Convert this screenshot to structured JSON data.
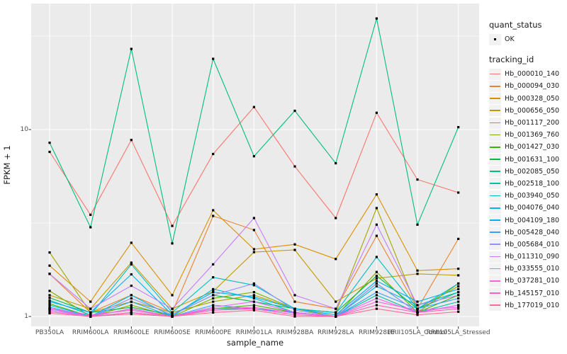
{
  "chart_data": {
    "type": "line",
    "xlabel": "sample_name",
    "ylabel": "FPKM + 1",
    "y_scale": "log10",
    "y_tick_values": [
      1,
      10
    ],
    "y_tick_labels": [
      "1",
      "10"
    ],
    "y_minor_values": [
      3.162,
      31.62
    ],
    "ylim": [
      0.96,
      47
    ],
    "grid": "on",
    "legend_position": "right",
    "panel_color": "#EBEBEB",
    "grid_color": "#FFFFFF",
    "marker_color": "#000000",
    "categories": [
      "PB350LA",
      "RRIM600LA",
      "RRIM600LE",
      "RRIM600SE",
      "RRIM600PE",
      "RRIM901LA",
      "RRIM928BA",
      "RRIM928LA",
      "RRIM928LE",
      "RRII105LA_Control",
      "RRII105LA_Stressed"
    ],
    "series": [
      {
        "name": "Hb_000010_140",
        "color": "#F8766D",
        "values": [
          7.6,
          3.5,
          8.8,
          3.05,
          7.4,
          13.2,
          6.35,
          3.36,
          12.3,
          5.4,
          4.6
        ]
      },
      {
        "name": "Hb_000094_030",
        "color": "#EA8331",
        "values": [
          1.69,
          1.05,
          1.3,
          1.05,
          3.45,
          2.9,
          1.2,
          1.1,
          2.7,
          1.1,
          2.6
        ]
      },
      {
        "name": "Hb_000328_050",
        "color": "#D89000",
        "values": [
          1.87,
          1.2,
          2.48,
          1.3,
          3.7,
          2.29,
          2.43,
          2.03,
          4.5,
          1.76,
          1.8
        ]
      },
      {
        "name": "Hb_000656_050",
        "color": "#C09B00",
        "values": [
          1.3,
          1.1,
          1.94,
          1.1,
          1.36,
          2.21,
          2.27,
          1.2,
          1.6,
          1.69,
          1.66
        ]
      },
      {
        "name": "Hb_001117_200",
        "color": "#A3A500",
        "values": [
          2.2,
          1.05,
          1.2,
          1.05,
          1.2,
          1.3,
          1.1,
          1.05,
          3.8,
          1.1,
          1.45
        ]
      },
      {
        "name": "Hb_001369_760",
        "color": "#7CAE00",
        "values": [
          1.37,
          1.0,
          1.15,
          1.0,
          1.25,
          1.35,
          1.1,
          1.0,
          1.73,
          1.05,
          1.5
        ]
      },
      {
        "name": "Hb_001427_030",
        "color": "#39B600",
        "values": [
          1.17,
          1.0,
          1.1,
          1.0,
          1.1,
          1.15,
          1.05,
          1.0,
          1.5,
          1.05,
          1.3
        ]
      },
      {
        "name": "Hb_001631_100",
        "color": "#00BB4E",
        "values": [
          1.26,
          1.05,
          1.12,
          1.02,
          1.3,
          1.2,
          1.1,
          1.05,
          1.65,
          1.1,
          1.35
        ]
      },
      {
        "name": "Hb_002085_050",
        "color": "#00BF7D",
        "values": [
          8.5,
          3.0,
          27.0,
          2.46,
          23.9,
          7.2,
          12.6,
          6.6,
          39.3,
          3.1,
          10.3
        ]
      },
      {
        "name": "Hb_002518_100",
        "color": "#00C1A3",
        "values": [
          1.1,
          1.0,
          1.05,
          1.0,
          1.1,
          1.1,
          1.05,
          1.0,
          1.3,
          1.05,
          1.2
        ]
      },
      {
        "name": "Hb_003940_050",
        "color": "#00BFC4",
        "values": [
          1.22,
          1.02,
          1.9,
          1.05,
          1.62,
          1.47,
          1.1,
          1.05,
          2.08,
          1.1,
          1.5
        ]
      },
      {
        "name": "Hb_004076_040",
        "color": "#00BAE0",
        "values": [
          1.15,
          1.0,
          1.3,
          1.0,
          1.4,
          1.25,
          1.05,
          1.0,
          1.45,
          1.15,
          1.35
        ]
      },
      {
        "name": "Hb_004109_180",
        "color": "#00B0F6",
        "values": [
          1.2,
          1.05,
          1.68,
          1.02,
          1.35,
          1.27,
          1.1,
          1.02,
          1.55,
          1.2,
          1.4
        ]
      },
      {
        "name": "Hb_005428_040",
        "color": "#35A2FF",
        "values": [
          1.12,
          1.0,
          1.2,
          1.0,
          1.15,
          1.1,
          1.05,
          1.0,
          1.35,
          1.1,
          1.25
        ]
      },
      {
        "name": "Hb_005684_010",
        "color": "#9590FF",
        "values": [
          1.1,
          1.0,
          1.25,
          1.02,
          1.3,
          1.5,
          1.08,
          1.0,
          1.5,
          1.05,
          1.15
        ]
      },
      {
        "name": "Hb_011310_090",
        "color": "#C77CFF",
        "values": [
          1.69,
          1.1,
          1.46,
          1.1,
          1.9,
          3.36,
          1.3,
          1.1,
          3.1,
          1.15,
          1.3
        ]
      },
      {
        "name": "Hb_033555_010",
        "color": "#E76BF3",
        "values": [
          1.08,
          1.0,
          1.1,
          1.0,
          1.12,
          1.2,
          1.05,
          1.0,
          1.25,
          1.05,
          1.15
        ]
      },
      {
        "name": "Hb_037281_010",
        "color": "#FA62DB",
        "values": [
          1.1,
          1.02,
          1.08,
          1.0,
          1.1,
          1.12,
          1.04,
          1.0,
          1.2,
          1.08,
          1.12
        ]
      },
      {
        "name": "Hb_145157_010",
        "color": "#FF62BC",
        "values": [
          1.06,
          1.0,
          1.05,
          1.0,
          1.08,
          1.1,
          1.02,
          1.0,
          1.15,
          1.05,
          1.1
        ]
      },
      {
        "name": "Hb_177019_010",
        "color": "#FF6A98",
        "values": [
          1.04,
          1.0,
          1.03,
          1.0,
          1.05,
          1.08,
          1.0,
          1.0,
          1.1,
          1.02,
          1.06
        ]
      }
    ]
  },
  "legend": {
    "quant_status": {
      "title": "quant_status",
      "items": [
        "OK"
      ]
    },
    "tracking_id": {
      "title": "tracking_id"
    }
  }
}
